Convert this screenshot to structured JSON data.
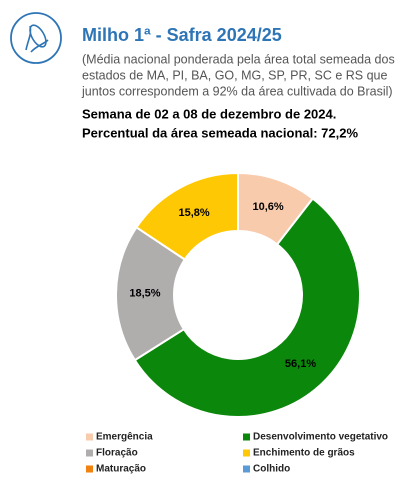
{
  "chart_data": {
    "type": "donut",
    "title": "Milho 1ª - Safra 2024/25",
    "subtitle_lines": [
      "(Média nacional ponderada pela área total semeada dos",
      "estados de MA, PI, BA, GO, MG, SP, PR, SC e RS que",
      "juntos correspondem a 92% da área cultivada do Brasil)"
    ],
    "week": "Semana de 02 a 08 de dezembro de 2024.",
    "planted_share": "Percentual da área semeada nacional: 72,2%",
    "categories": [
      "Emergência",
      "Desenvolvimento vegetativo",
      "Floração",
      "Enchimento de grãos",
      "Maturação",
      "Colhido"
    ],
    "values": [
      10.6,
      56.1,
      18.5,
      15.8,
      0,
      0
    ],
    "value_labels": [
      "10,6%",
      "56,1%",
      "18,5%",
      "15,8%",
      null,
      null
    ],
    "colors": [
      "#f8cbad",
      "#0b870b",
      "#b0adad",
      "#ffc805",
      "#f0820f",
      "#5b9bd5"
    ]
  }
}
